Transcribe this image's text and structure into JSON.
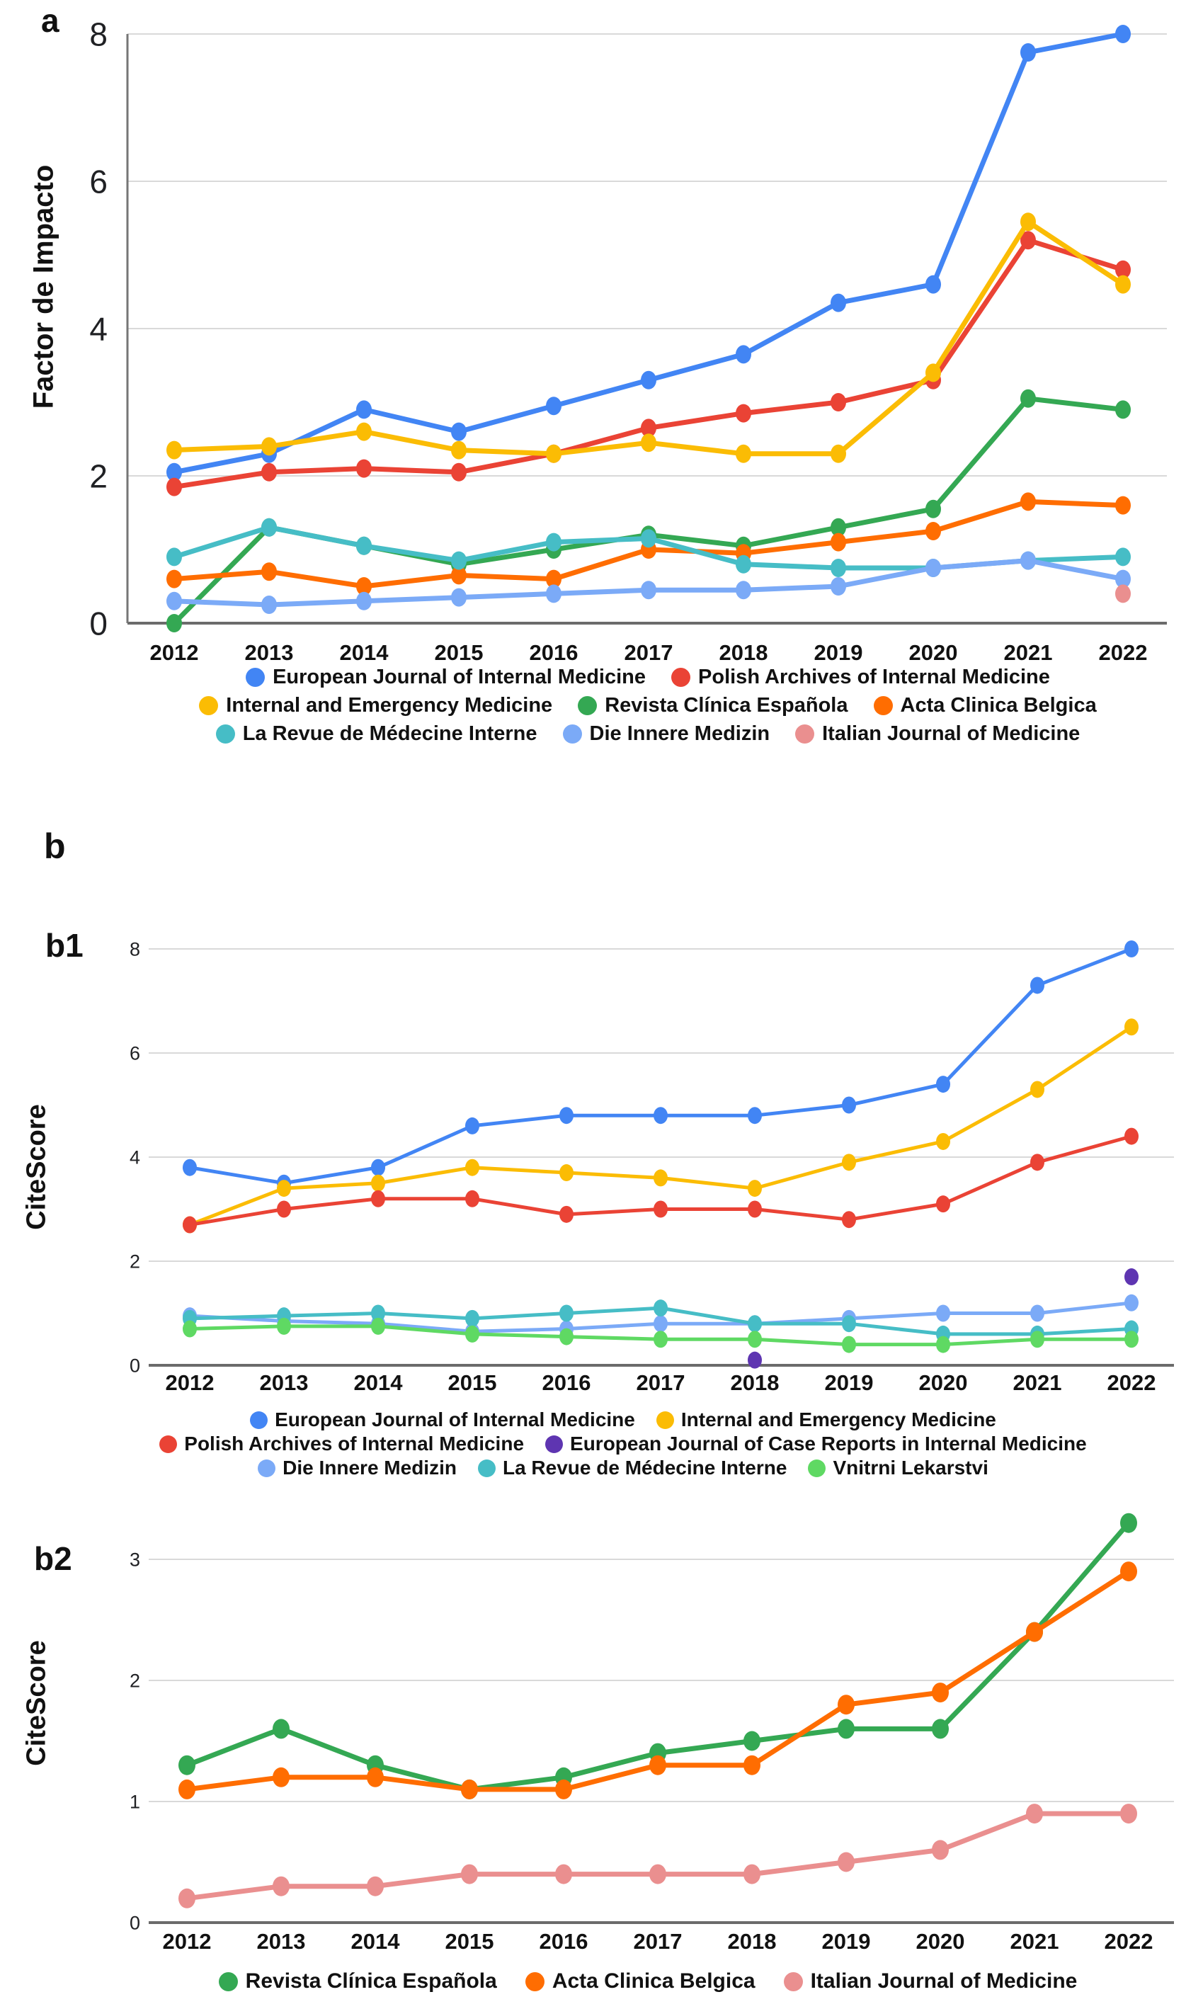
{
  "figure": {
    "background": "#ffffff",
    "labels": {
      "a": "a",
      "b": "b",
      "b1": "b1",
      "b2": "b2"
    },
    "colors": {
      "blue": "#4285F4",
      "red": "#EA4335",
      "yellow": "#FBBC04",
      "green": "#34A853",
      "orange": "#FF6D01",
      "teal": "#46BDC6",
      "light_blue": "#7BAAF7",
      "pink": "#EA8F8F",
      "purple": "#5E35B1",
      "light_green": "#5FD963",
      "grid": "#D9D9D9",
      "axis": "#757575",
      "axis_dark": "#6B6B6B",
      "tick_text": "#202124"
    }
  },
  "chart_data": [
    {
      "id": "a",
      "type": "line",
      "title": "a",
      "ylabel": "Factor de Impacto",
      "xlabel": "",
      "ylim": [
        0,
        8
      ],
      "yticks": [
        0,
        2,
        4,
        6,
        8
      ],
      "grid": true,
      "legend_position": "bottom",
      "categories": [
        "2012",
        "2013",
        "2014",
        "2015",
        "2016",
        "2017",
        "2018",
        "2019",
        "2020",
        "2021",
        "2022"
      ],
      "series": [
        {
          "name": "European Journal of Internal Medicine",
          "color": "blue",
          "values": [
            2.05,
            2.3,
            2.9,
            2.6,
            2.95,
            3.3,
            3.65,
            4.35,
            4.6,
            7.75,
            8.0
          ]
        },
        {
          "name": "Polish Archives of Internal Medicine",
          "color": "red",
          "values": [
            1.85,
            2.05,
            2.1,
            2.05,
            2.3,
            2.65,
            2.85,
            3.0,
            3.3,
            5.2,
            4.8
          ]
        },
        {
          "name": "Internal and Emergency Medicine",
          "color": "yellow",
          "values": [
            2.35,
            2.4,
            2.6,
            2.35,
            2.3,
            2.45,
            2.3,
            2.3,
            3.4,
            5.45,
            4.6
          ]
        },
        {
          "name": "Revista Clínica Española",
          "color": "green",
          "values": [
            0.0,
            1.3,
            1.05,
            0.8,
            1.0,
            1.2,
            1.05,
            1.3,
            1.55,
            3.05,
            2.9
          ]
        },
        {
          "name": "Acta Clinica Belgica",
          "color": "orange",
          "values": [
            0.6,
            0.7,
            0.5,
            0.65,
            0.6,
            1.0,
            0.95,
            1.1,
            1.25,
            1.65,
            1.6
          ]
        },
        {
          "name": "La Revue de Médecine Interne",
          "color": "teal",
          "values": [
            0.9,
            1.3,
            1.05,
            0.85,
            1.1,
            1.15,
            0.8,
            0.75,
            0.75,
            0.85,
            0.9
          ]
        },
        {
          "name": "Die Innere Medizin",
          "color": "light_blue",
          "values": [
            0.3,
            0.25,
            0.3,
            0.35,
            0.4,
            0.45,
            0.45,
            0.5,
            0.75,
            0.85,
            0.6
          ]
        },
        {
          "name": "Italian Journal of Medicine",
          "color": "pink",
          "values": [
            null,
            null,
            null,
            null,
            null,
            null,
            null,
            null,
            null,
            null,
            0.4
          ]
        }
      ],
      "legend_rows": [
        [
          0,
          1
        ],
        [
          2,
          3,
          4
        ],
        [
          5,
          6,
          7
        ]
      ]
    },
    {
      "id": "b1",
      "type": "line",
      "title": "b1",
      "ylabel": "CiteScore",
      "xlabel": "",
      "ylim": [
        0,
        8
      ],
      "yticks": [
        0,
        2,
        4,
        6,
        8
      ],
      "grid": true,
      "legend_position": "bottom",
      "categories": [
        "2012",
        "2013",
        "2014",
        "2015",
        "2016",
        "2017",
        "2018",
        "2019",
        "2020",
        "2021",
        "2022"
      ],
      "series": [
        {
          "name": "European Journal of Internal Medicine",
          "color": "blue",
          "values": [
            3.8,
            3.5,
            3.8,
            4.6,
            4.8,
            4.8,
            4.8,
            5.0,
            5.4,
            7.3,
            8.0
          ]
        },
        {
          "name": "Internal and Emergency Medicine",
          "color": "yellow",
          "values": [
            2.7,
            3.4,
            3.5,
            3.8,
            3.7,
            3.6,
            3.4,
            3.9,
            4.3,
            5.3,
            6.5
          ]
        },
        {
          "name": "Polish Archives of Internal Medicine",
          "color": "red",
          "values": [
            2.7,
            3.0,
            3.2,
            3.2,
            2.9,
            3.0,
            3.0,
            2.8,
            3.1,
            3.9,
            4.4
          ]
        },
        {
          "name": "European Journal of Case Reports in Internal Medicine",
          "color": "purple",
          "values": [
            null,
            null,
            null,
            null,
            null,
            null,
            0.1,
            null,
            null,
            null,
            1.7
          ]
        },
        {
          "name": "Die Innere Medizin",
          "color": "light_blue",
          "values": [
            0.95,
            0.85,
            0.8,
            0.65,
            0.7,
            0.8,
            0.8,
            0.9,
            1.0,
            1.0,
            1.2
          ]
        },
        {
          "name": "La Revue de Médecine Interne",
          "color": "teal",
          "values": [
            0.9,
            0.95,
            1.0,
            0.9,
            1.0,
            1.1,
            0.8,
            0.8,
            0.6,
            0.6,
            0.7
          ]
        },
        {
          "name": "Vnitrni Lekarstvi",
          "color": "light_green",
          "values": [
            0.7,
            0.75,
            0.75,
            0.6,
            0.55,
            0.5,
            0.5,
            0.4,
            0.4,
            0.5,
            0.5
          ]
        }
      ],
      "legend_rows": [
        [
          0,
          1
        ],
        [
          2,
          3
        ],
        [
          4,
          5,
          6
        ]
      ]
    },
    {
      "id": "b2",
      "type": "line",
      "title": "b2",
      "ylabel": "CiteScore",
      "xlabel": "",
      "ylim": [
        0,
        3.4
      ],
      "yticks": [
        0,
        1,
        2,
        3
      ],
      "grid": true,
      "legend_position": "bottom",
      "categories": [
        "2012",
        "2013",
        "2014",
        "2015",
        "2016",
        "2017",
        "2018",
        "2019",
        "2020",
        "2021",
        "2022"
      ],
      "series": [
        {
          "name": "Revista Clínica Española",
          "color": "green",
          "values": [
            1.3,
            1.6,
            1.3,
            1.1,
            1.2,
            1.4,
            1.5,
            1.6,
            1.6,
            2.4,
            3.3
          ]
        },
        {
          "name": "Acta Clinica Belgica",
          "color": "orange",
          "values": [
            1.1,
            1.2,
            1.2,
            1.1,
            1.1,
            1.3,
            1.3,
            1.8,
            1.9,
            2.4,
            2.9
          ]
        },
        {
          "name": "Italian Journal of Medicine",
          "color": "pink",
          "values": [
            0.2,
            0.3,
            0.3,
            0.4,
            0.4,
            0.4,
            0.4,
            0.5,
            0.6,
            0.9,
            0.9
          ]
        }
      ],
      "legend_rows": [
        [
          0,
          1,
          2
        ]
      ]
    }
  ]
}
